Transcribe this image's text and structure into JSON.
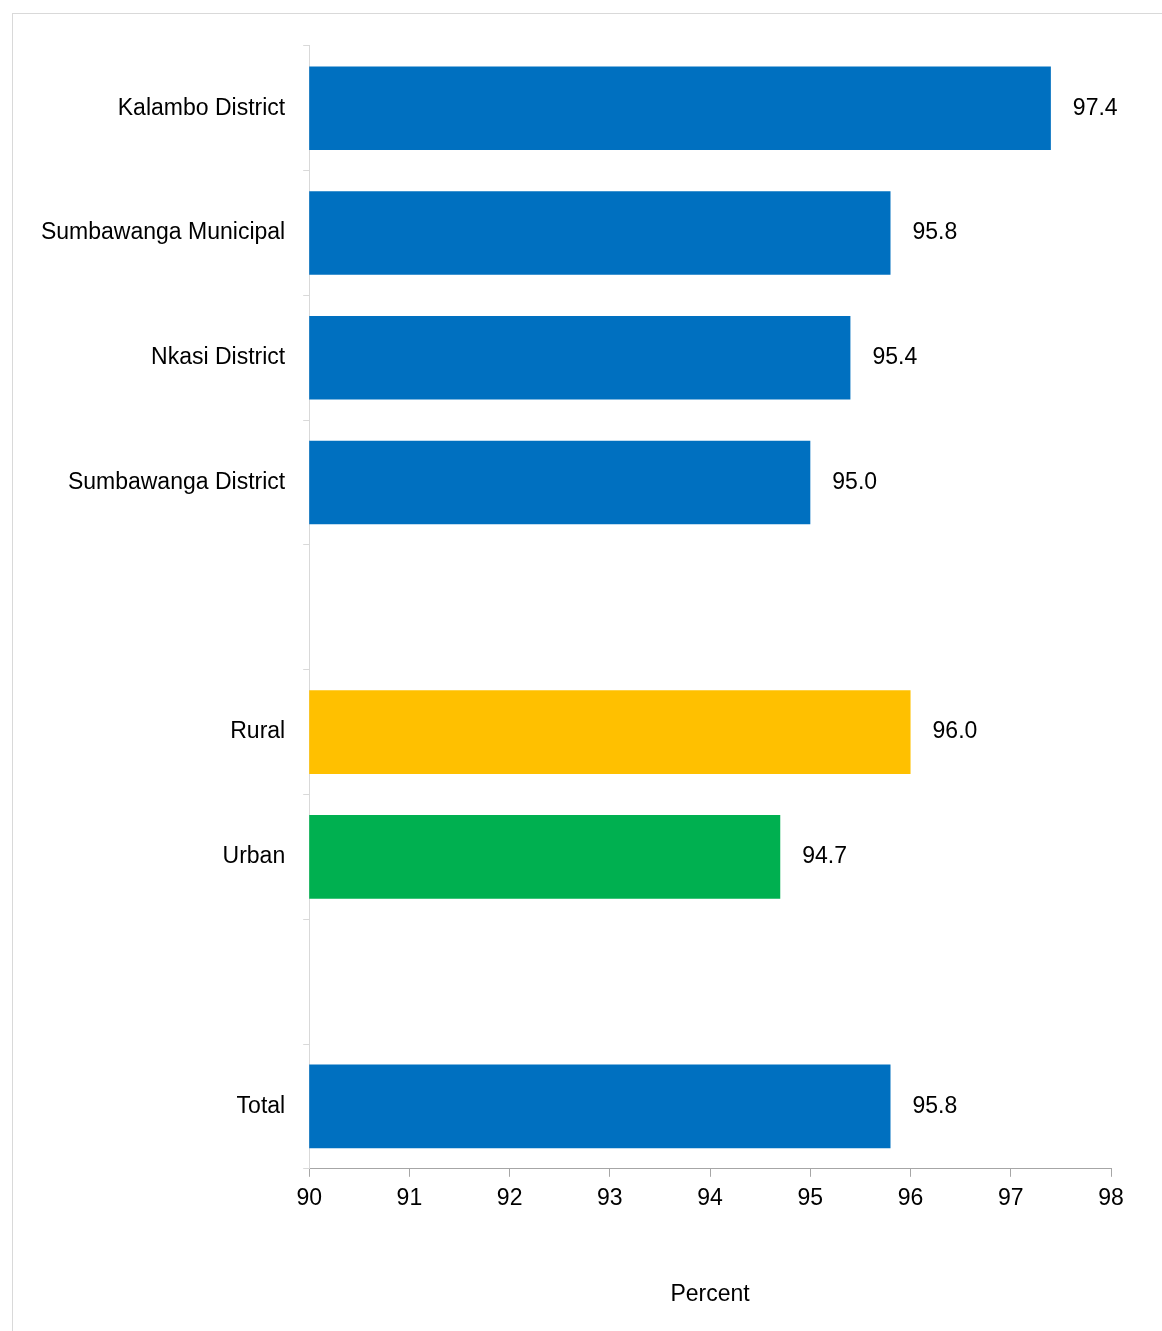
{
  "chart_data": {
    "type": "bar",
    "orientation": "horizontal",
    "xlabel": "Percent",
    "categories": [
      "Kalambo District",
      "Sumbawanga Municipal",
      "Nkasi District",
      "Sumbawanga District",
      null,
      "Rural",
      "Urban",
      null,
      "Total"
    ],
    "values": [
      97.4,
      95.8,
      95.4,
      95.0,
      null,
      96.0,
      94.7,
      null,
      95.8
    ],
    "value_labels": [
      "97.4",
      "95.8",
      "95.4",
      "95.0",
      null,
      "96.0",
      "94.7",
      null,
      "95.8"
    ],
    "colors": [
      "#0070c0",
      "#0070c0",
      "#0070c0",
      "#0070c0",
      null,
      "#ffc000",
      "#00b050",
      null,
      "#0070c0"
    ],
    "xlim": [
      90,
      98
    ],
    "xticks": [
      90,
      91,
      92,
      93,
      94,
      95,
      96,
      97,
      98
    ],
    "grid": false,
    "legend": false
  }
}
